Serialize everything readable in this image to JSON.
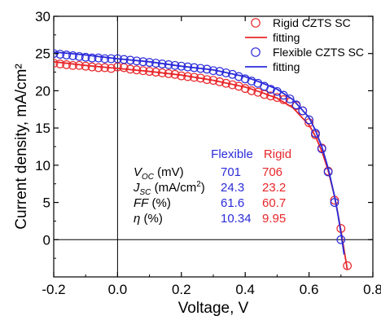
{
  "chart_data": {
    "type": "line",
    "xlabel": "Voltage, V",
    "ylabel": "Current density, mA/cm²",
    "xlim": [
      -0.2,
      0.8
    ],
    "ylim": [
      -5,
      30
    ],
    "xticks": [
      "-0.2",
      "0.0",
      "0.2",
      "0.4",
      "0.6",
      "0.8"
    ],
    "yticks": [
      "0",
      "5",
      "10",
      "15",
      "20",
      "25",
      "30"
    ],
    "reference_lines": {
      "x": 0,
      "y": 0
    },
    "legend_position": "top-right",
    "series": [
      {
        "name": "Rigid CZTS SC",
        "kind": "marker",
        "color": "#e8262a",
        "x": [
          -0.2,
          -0.18,
          -0.16,
          -0.14,
          -0.12,
          -0.1,
          -0.08,
          -0.06,
          -0.04,
          -0.02,
          0.0,
          0.02,
          0.04,
          0.06,
          0.08,
          0.1,
          0.12,
          0.14,
          0.16,
          0.18,
          0.2,
          0.22,
          0.24,
          0.26,
          0.28,
          0.3,
          0.32,
          0.34,
          0.36,
          0.38,
          0.4,
          0.42,
          0.44,
          0.46,
          0.48,
          0.5,
          0.52,
          0.54,
          0.56,
          0.58,
          0.6,
          0.62,
          0.64,
          0.66,
          0.68,
          0.7,
          0.72
        ],
        "y": [
          23.7,
          23.6,
          23.5,
          23.4,
          23.4,
          23.3,
          23.2,
          23.1,
          23.1,
          23.0,
          23.2,
          23.1,
          22.9,
          22.8,
          22.7,
          22.6,
          22.5,
          22.4,
          22.3,
          22.2,
          22.0,
          21.9,
          21.8,
          21.7,
          21.5,
          21.4,
          21.2,
          21.0,
          20.8,
          20.6,
          20.3,
          20.0,
          19.8,
          19.5,
          19.3,
          19.1,
          18.8,
          18.5,
          18.0,
          17.3,
          15.7,
          14.1,
          12.3,
          9.2,
          5.3,
          1.5,
          -3.5
        ]
      },
      {
        "name": "fitting",
        "kind": "line",
        "color": "#e8262a",
        "x": [
          -0.2,
          -0.1,
          0.0,
          0.1,
          0.2,
          0.3,
          0.4,
          0.45,
          0.5,
          0.55,
          0.6,
          0.62,
          0.64,
          0.66,
          0.68,
          0.69,
          0.7,
          0.71,
          0.72
        ],
        "y": [
          23.9,
          23.4,
          23.0,
          22.6,
          22.1,
          21.4,
          20.5,
          19.8,
          19.0,
          17.7,
          15.4,
          13.9,
          11.9,
          9.3,
          5.8,
          3.6,
          1.2,
          -1.4,
          -4.0
        ]
      },
      {
        "name": "Flexible CZTS SC",
        "kind": "marker",
        "color": "#2b2bd9",
        "x": [
          -0.2,
          -0.18,
          -0.16,
          -0.14,
          -0.12,
          -0.1,
          -0.08,
          -0.06,
          -0.04,
          -0.02,
          0.0,
          0.02,
          0.04,
          0.06,
          0.08,
          0.1,
          0.12,
          0.14,
          0.16,
          0.18,
          0.2,
          0.22,
          0.24,
          0.26,
          0.28,
          0.3,
          0.32,
          0.34,
          0.36,
          0.38,
          0.4,
          0.42,
          0.44,
          0.46,
          0.48,
          0.5,
          0.52,
          0.54,
          0.56,
          0.58,
          0.6,
          0.62,
          0.64,
          0.66,
          0.68,
          0.7
        ],
        "y": [
          25.0,
          24.9,
          24.8,
          24.7,
          24.6,
          24.5,
          24.4,
          24.4,
          24.3,
          24.3,
          24.3,
          24.2,
          24.1,
          24.0,
          23.9,
          23.8,
          23.7,
          23.6,
          23.5,
          23.4,
          23.3,
          23.2,
          23.1,
          23.0,
          22.9,
          22.7,
          22.6,
          22.4,
          22.2,
          21.9,
          21.6,
          21.3,
          21.0,
          20.6,
          20.2,
          19.9,
          19.4,
          18.9,
          18.1,
          17.3,
          16.1,
          14.3,
          12.2,
          9.1,
          5.0,
          0.0
        ]
      },
      {
        "name": "fitting",
        "kind": "line",
        "color": "#2b2bd9",
        "x": [
          -0.2,
          -0.1,
          0.0,
          0.1,
          0.2,
          0.3,
          0.4,
          0.45,
          0.5,
          0.55,
          0.6,
          0.62,
          0.64,
          0.66,
          0.68,
          0.69,
          0.7,
          0.71
        ],
        "y": [
          25.2,
          24.8,
          24.3,
          23.9,
          23.3,
          22.8,
          21.9,
          21.1,
          20.2,
          18.8,
          16.4,
          14.7,
          12.5,
          9.6,
          5.8,
          3.5,
          0.9,
          -2.0
        ]
      }
    ],
    "table": {
      "columns": [
        "Flexible",
        "Rigid"
      ],
      "column_colors": [
        "#2b2bd9",
        "#e8262a"
      ],
      "rows": [
        {
          "label_main": "V",
          "label_sub": "OC",
          "label_sup": "",
          "label_rest": " (mV)",
          "values": [
            "701",
            "706"
          ]
        },
        {
          "label_main": "J",
          "label_sub": "SC",
          "label_sup": "2",
          "label_rest": " (mA/cm",
          "label_end": ")",
          "values": [
            "24.3",
            "23.2"
          ]
        },
        {
          "label_main": "FF",
          "label_sub": "",
          "label_sup": "",
          "label_rest": " (%)",
          "values": [
            "61.6",
            "60.7"
          ]
        },
        {
          "label_main": "η",
          "label_sub": "",
          "label_sup": "",
          "label_rest": " (%)",
          "values": [
            "10.34",
            "9.95"
          ]
        }
      ]
    }
  }
}
